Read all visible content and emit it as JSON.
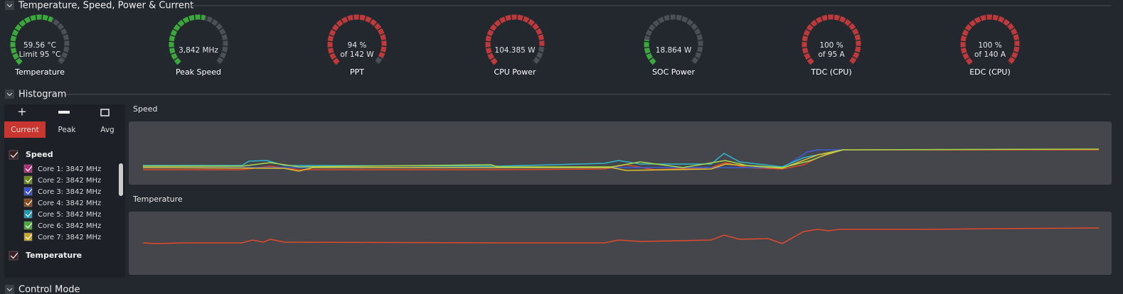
{
  "sections": [
    "Temperature, Speed, Power & Current",
    "Histogram",
    "Control Mode"
  ],
  "gauges": [
    {
      "value": "59.56 °C",
      "sub": "Limit 95 °C",
      "label": "Temperature"
    },
    {
      "value": "3,842  MHz",
      "label": "Peak Speed"
    },
    {
      "value": "94 %",
      "sub": "of 142 W",
      "label": "PPT"
    },
    {
      "value": "104.385 W",
      "label": "CPU Power"
    },
    {
      "value": "18.864 W",
      "label": "SOC Power"
    },
    {
      "value": "100 %",
      "sub": "of 95 A",
      "label": "TDC (CPU)"
    },
    {
      "value": "100 %",
      "sub": "of 140 A",
      "label": "EDC (CPU)"
    }
  ],
  "tabs": [
    "Current",
    "Peak",
    "Avg"
  ],
  "groups": [
    {
      "name": "Speed",
      "items": [
        "Core 1: 3842 MHz",
        "Core 2: 3842 MHz",
        "Core 3: 3842 MHz",
        "Core 4: 3842 MHz",
        "Core 5: 3842 MHz",
        "Core 6: 3842 MHz",
        "Core 7: 3842 MHz"
      ]
    },
    {
      "name": "Temperature"
    }
  ],
  "charts": [
    "Speed",
    "Temperature"
  ]
}
